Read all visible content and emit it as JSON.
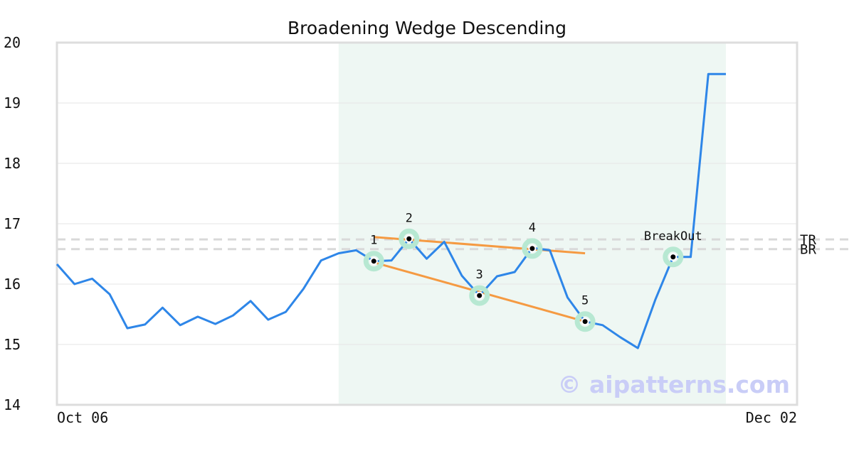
{
  "chart_data": {
    "type": "line",
    "title": "Broadening Wedge Descending",
    "x_labels": [
      "Oct 06",
      "Dec 02"
    ],
    "ylim": [
      14,
      20
    ],
    "yticks": [
      "14",
      "15",
      "16",
      "17",
      "18",
      "19",
      "20"
    ],
    "grid": "horizontal",
    "colors": {
      "price": "#2e86e8",
      "wedge": "#f59a42",
      "highlight": "#eef7f3",
      "marker_ring": "#b7e8d2",
      "ref_lines": "#d9d9d9",
      "axes": "#dddddd"
    },
    "series": [
      {
        "values": [
          16.33,
          16.0,
          16.09,
          15.83,
          15.27,
          15.33,
          15.61,
          15.32,
          15.46,
          15.34,
          15.48,
          15.72,
          15.41,
          15.54,
          15.92,
          16.39,
          16.51,
          16.56,
          16.38,
          16.39,
          16.75,
          16.42,
          16.7,
          16.14,
          15.81,
          16.13,
          16.2,
          16.6,
          16.56,
          15.78,
          15.38,
          15.32,
          15.12,
          14.94,
          15.75,
          16.45,
          16.45,
          19.48,
          19.48
        ]
      }
    ],
    "highlight_range": [
      16,
      38
    ],
    "pattern_points": [
      {
        "label": "1",
        "index": 18,
        "value": 16.38
      },
      {
        "label": "2",
        "index": 20,
        "value": 16.75
      },
      {
        "label": "3",
        "index": 24,
        "value": 15.81
      },
      {
        "label": "4",
        "index": 27,
        "value": 16.59
      },
      {
        "label": "5",
        "index": 30,
        "value": 15.38
      },
      {
        "label": "BreakOut",
        "index": 35,
        "value": 16.45
      }
    ],
    "wedge_lines": [
      {
        "from": [
          18,
          16.78
        ],
        "to": [
          30,
          16.51
        ]
      },
      {
        "from": [
          18,
          16.36
        ],
        "to": [
          30,
          15.38
        ]
      }
    ],
    "reference_lines": [
      {
        "label": "TR",
        "value": 16.74
      },
      {
        "label": "BR",
        "value": 16.58
      }
    ]
  },
  "watermark": "© aipatterns.com"
}
